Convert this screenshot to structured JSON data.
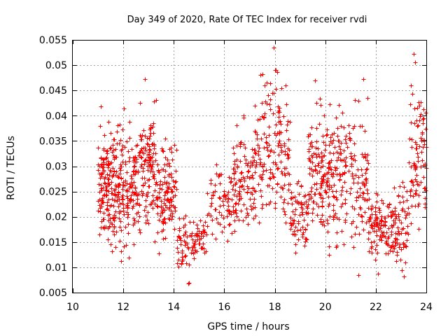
{
  "chart_data": {
    "type": "scatter",
    "title": "Day 349 of 2020, Rate Of TEC Index for receiver rvdi",
    "xlabel": "GPS time / hours",
    "ylabel": "ROTI / TECUs",
    "xlim": [
      10,
      24
    ],
    "ylim": [
      0.005,
      0.055
    ],
    "xticks": [
      10,
      12,
      14,
      16,
      18,
      20,
      22,
      24
    ],
    "xtick_labels": [
      "10",
      "12",
      "14",
      "16",
      "18",
      "20",
      "22",
      "24"
    ],
    "yticks": [
      0.005,
      0.01,
      0.015,
      0.02,
      0.025,
      0.03,
      0.035,
      0.04,
      0.045,
      0.05,
      0.055
    ],
    "ytick_labels": [
      "0.005",
      "0.01",
      "0.015",
      "0.02",
      "0.025",
      "0.03",
      "0.035",
      "0.04",
      "0.045",
      "0.05",
      "0.055"
    ],
    "grid": true,
    "marker": "+",
    "series": [
      {
        "name": "ROTI",
        "color": "#ff0000",
        "clusters": [
          {
            "x_start": 11.0,
            "x_end": 11.6,
            "y_min": 0.011,
            "y_max": 0.042,
            "n": 130
          },
          {
            "x_start": 11.6,
            "x_end": 12.6,
            "y_min": 0.009,
            "y_max": 0.043,
            "n": 190
          },
          {
            "x_start": 12.6,
            "x_end": 13.3,
            "y_min": 0.012,
            "y_max": 0.047,
            "n": 120
          },
          {
            "x_start": 13.3,
            "x_end": 14.1,
            "y_min": 0.011,
            "y_max": 0.038,
            "n": 120
          },
          {
            "x_start": 14.1,
            "x_end": 14.6,
            "y_min": 0.007,
            "y_max": 0.023,
            "n": 40
          },
          {
            "x_start": 14.6,
            "x_end": 15.3,
            "y_min": 0.009,
            "y_max": 0.022,
            "n": 50
          },
          {
            "x_start": 15.3,
            "x_end": 16.3,
            "y_min": 0.012,
            "y_max": 0.033,
            "n": 70
          },
          {
            "x_start": 16.3,
            "x_end": 17.2,
            "y_min": 0.012,
            "y_max": 0.042,
            "n": 110
          },
          {
            "x_start": 17.2,
            "x_end": 18.6,
            "y_min": 0.013,
            "y_max": 0.054,
            "n": 170
          },
          {
            "x_start": 18.6,
            "x_end": 19.3,
            "y_min": 0.009,
            "y_max": 0.031,
            "n": 70
          },
          {
            "x_start": 19.3,
            "x_end": 20.3,
            "y_min": 0.01,
            "y_max": 0.047,
            "n": 150
          },
          {
            "x_start": 20.3,
            "x_end": 21.7,
            "y_min": 0.009,
            "y_max": 0.047,
            "n": 170
          },
          {
            "x_start": 21.7,
            "x_end": 22.6,
            "y_min": 0.009,
            "y_max": 0.027,
            "n": 100
          },
          {
            "x_start": 22.6,
            "x_end": 23.3,
            "y_min": 0.008,
            "y_max": 0.03,
            "n": 80
          },
          {
            "x_start": 23.3,
            "x_end": 24.0,
            "y_min": 0.013,
            "y_max": 0.052,
            "n": 90
          }
        ],
        "peaks": [
          {
            "x": 17.95,
            "y": 0.0535
          },
          {
            "x": 23.5,
            "y": 0.0522
          },
          {
            "x": 23.55,
            "y": 0.0505
          },
          {
            "x": 18.0,
            "y": 0.049
          },
          {
            "x": 12.85,
            "y": 0.0472
          },
          {
            "x": 19.6,
            "y": 0.047
          },
          {
            "x": 21.5,
            "y": 0.0472
          },
          {
            "x": 17.6,
            "y": 0.046
          },
          {
            "x": 11.1,
            "y": 0.0418
          },
          {
            "x": 14.6,
            "y": 0.007
          },
          {
            "x": 14.57,
            "y": 0.0068
          },
          {
            "x": 22.1,
            "y": 0.0088
          },
          {
            "x": 23.1,
            "y": 0.0082
          },
          {
            "x": 21.3,
            "y": 0.0085
          }
        ]
      }
    ]
  }
}
